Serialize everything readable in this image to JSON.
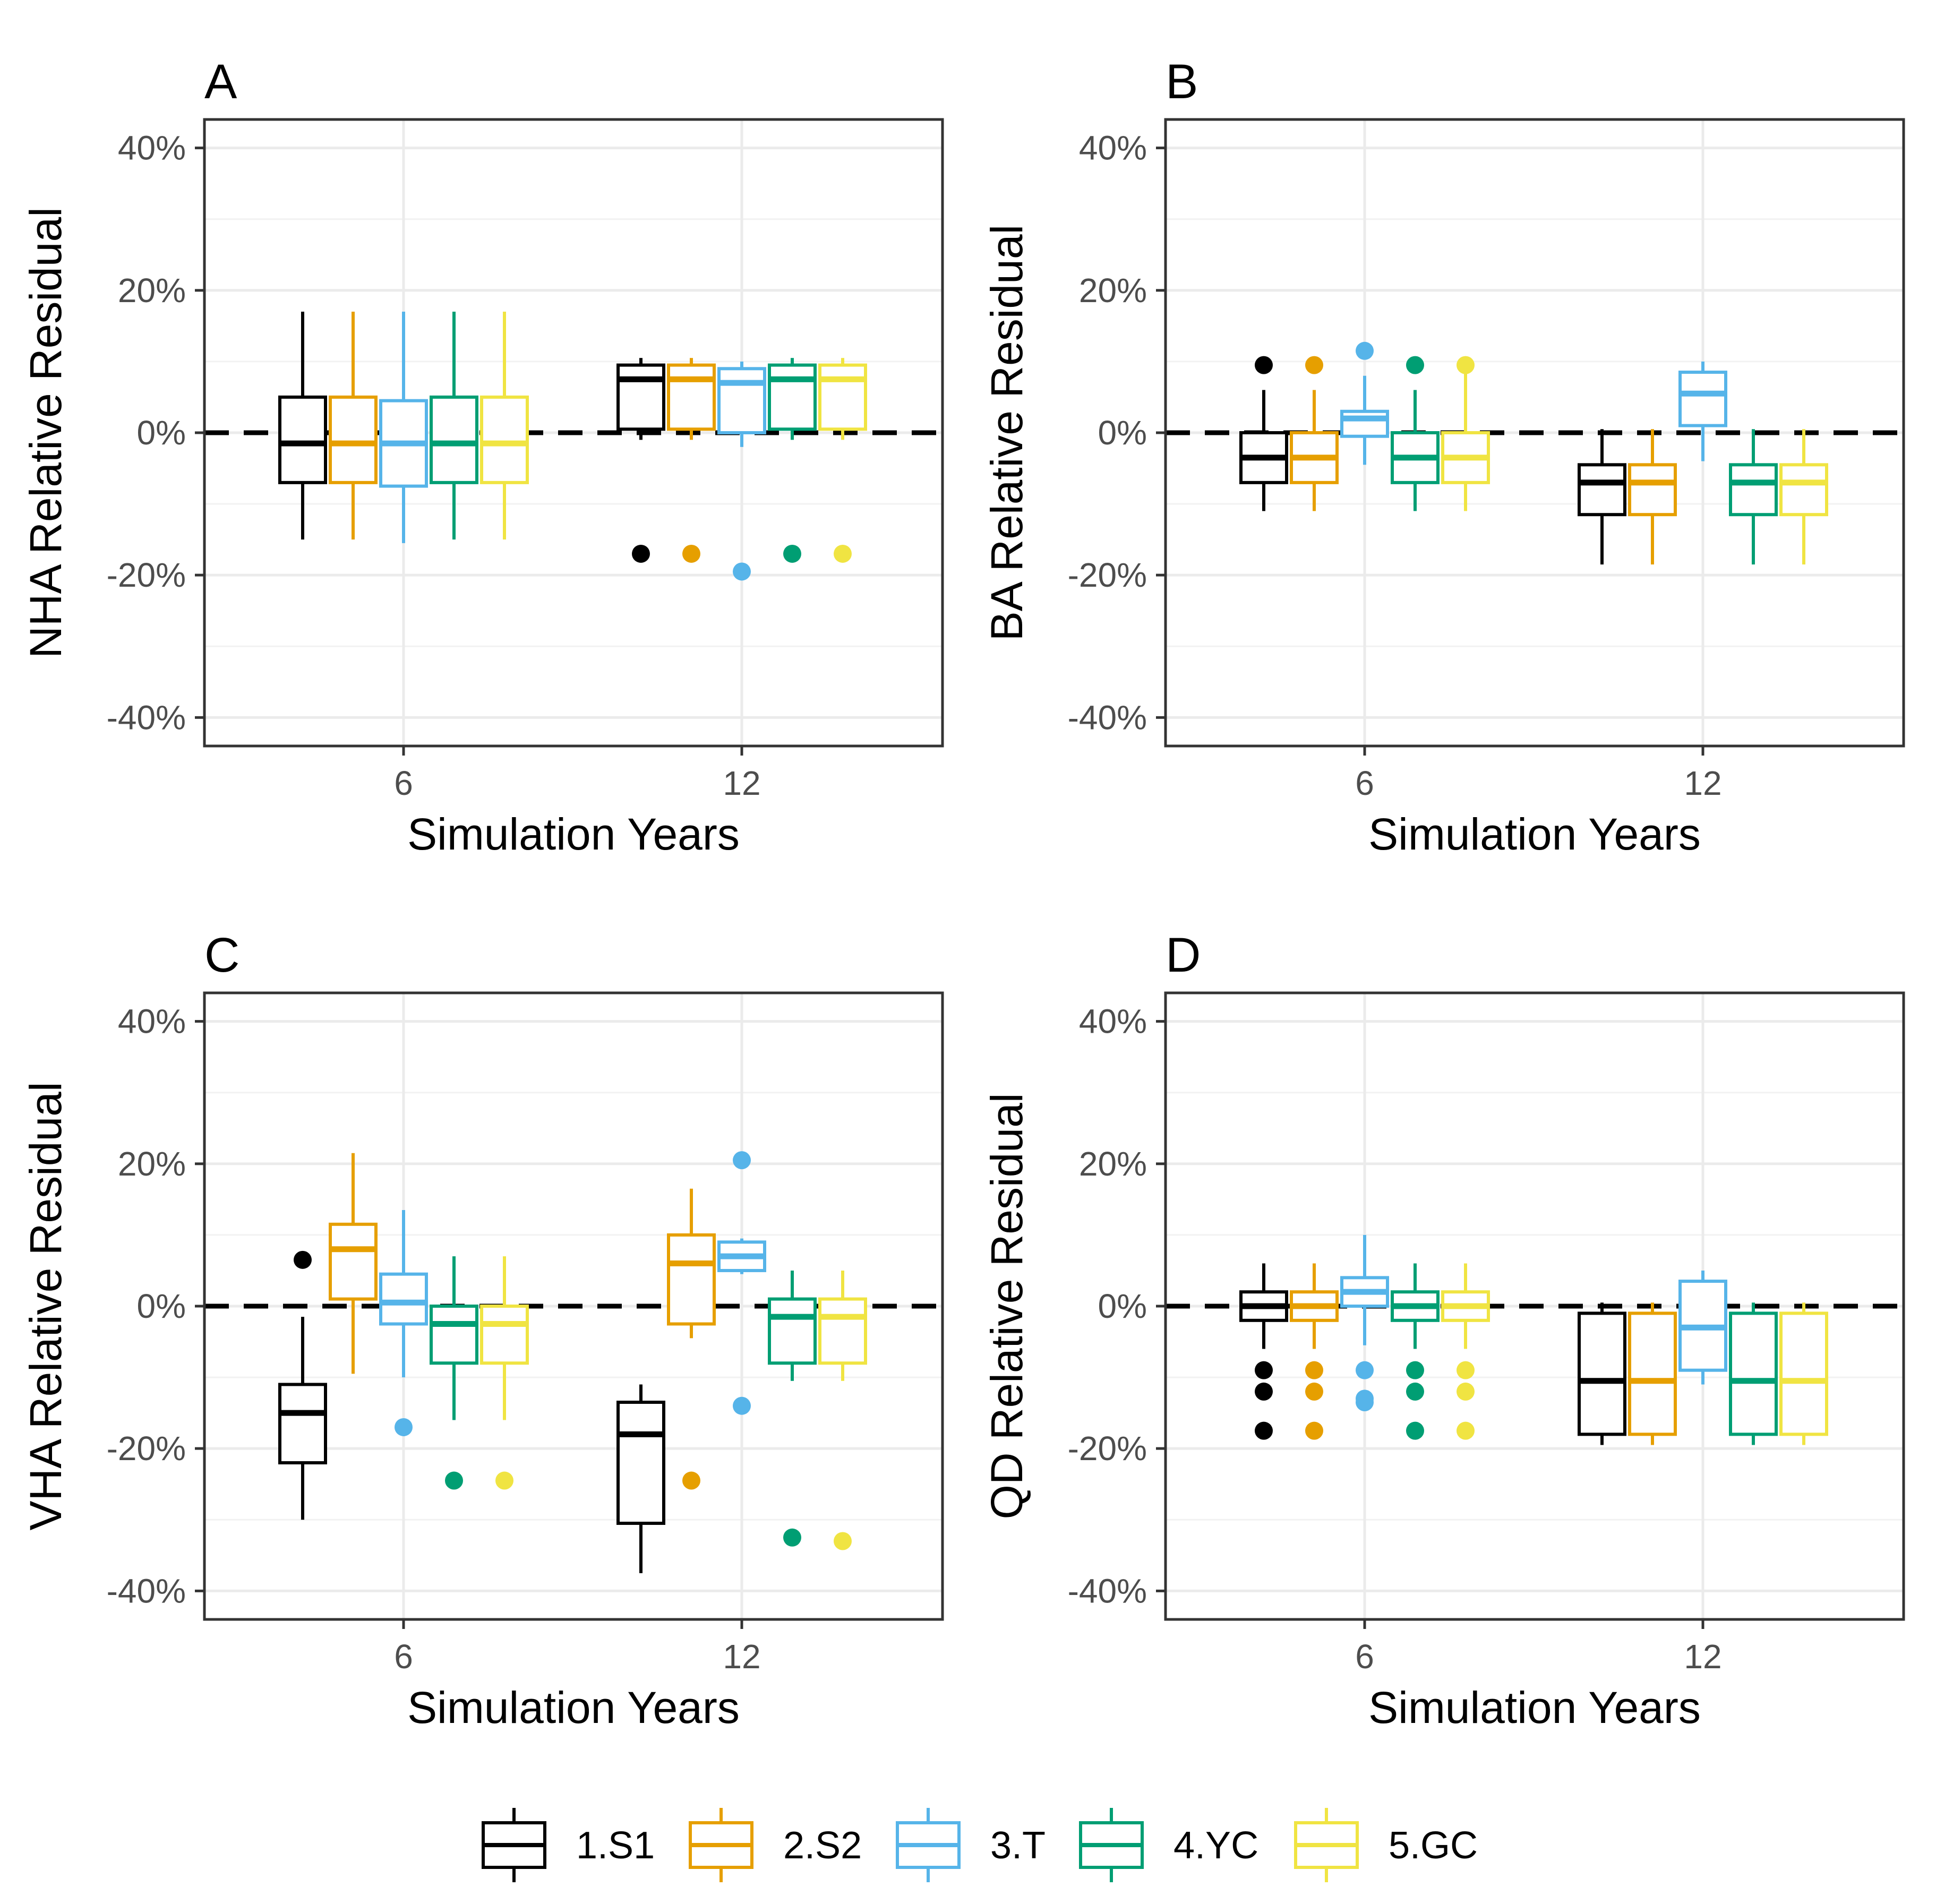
{
  "figure": {
    "x_axis_title": "Simulation Years",
    "y_tick_labels": [
      "-40%",
      "-20%",
      "0%",
      "20%",
      "40%"
    ],
    "x_tick_labels": [
      "6",
      "12"
    ]
  },
  "legend": [
    {
      "label": "1.S1",
      "color": "#000000"
    },
    {
      "label": "2.S2",
      "color": "#E69F00"
    },
    {
      "label": "3.T",
      "color": "#56B4E9"
    },
    {
      "label": "4.YC",
      "color": "#009E73"
    },
    {
      "label": "5.GC",
      "color": "#F0E442"
    }
  ],
  "chart_data": [
    {
      "type": "box",
      "panel": "A",
      "ylabel": "NHA Relative Residual",
      "xlabel": "Simulation Years",
      "ylim": [
        -0.44,
        0.44
      ],
      "y_ticks": [
        -0.4,
        -0.2,
        0,
        0.2,
        0.4
      ],
      "reference_line": 0,
      "groups": [
        {
          "x": "6",
          "boxes": [
            {
              "series": "1.S1",
              "min": -0.15,
              "q1": -0.07,
              "median": -0.015,
              "q3": 0.05,
              "max": 0.17,
              "outliers": []
            },
            {
              "series": "2.S2",
              "min": -0.15,
              "q1": -0.07,
              "median": -0.015,
              "q3": 0.05,
              "max": 0.17,
              "outliers": []
            },
            {
              "series": "3.T",
              "min": -0.155,
              "q1": -0.075,
              "median": -0.015,
              "q3": 0.045,
              "max": 0.17,
              "outliers": []
            },
            {
              "series": "4.YC",
              "min": -0.15,
              "q1": -0.07,
              "median": -0.015,
              "q3": 0.05,
              "max": 0.17,
              "outliers": []
            },
            {
              "series": "5.GC",
              "min": -0.15,
              "q1": -0.07,
              "median": -0.015,
              "q3": 0.05,
              "max": 0.17,
              "outliers": []
            }
          ]
        },
        {
          "x": "12",
          "boxes": [
            {
              "series": "1.S1",
              "min": -0.01,
              "q1": 0.005,
              "median": 0.075,
              "q3": 0.095,
              "max": 0.105,
              "outliers": [
                -0.17
              ]
            },
            {
              "series": "2.S2",
              "min": -0.01,
              "q1": 0.005,
              "median": 0.075,
              "q3": 0.095,
              "max": 0.105,
              "outliers": [
                -0.17
              ]
            },
            {
              "series": "3.T",
              "min": -0.02,
              "q1": 0.0,
              "median": 0.07,
              "q3": 0.09,
              "max": 0.1,
              "outliers": [
                -0.195
              ]
            },
            {
              "series": "4.YC",
              "min": -0.01,
              "q1": 0.005,
              "median": 0.075,
              "q3": 0.095,
              "max": 0.105,
              "outliers": [
                -0.17
              ]
            },
            {
              "series": "5.GC",
              "min": -0.01,
              "q1": 0.005,
              "median": 0.075,
              "q3": 0.095,
              "max": 0.105,
              "outliers": [
                -0.17
              ]
            }
          ]
        }
      ]
    },
    {
      "type": "box",
      "panel": "B",
      "ylabel": "BA Relative Residual",
      "xlabel": "Simulation Years",
      "ylim": [
        -0.44,
        0.44
      ],
      "y_ticks": [
        -0.4,
        -0.2,
        0,
        0.2,
        0.4
      ],
      "reference_line": 0,
      "groups": [
        {
          "x": "6",
          "boxes": [
            {
              "series": "1.S1",
              "min": -0.11,
              "q1": -0.07,
              "median": -0.035,
              "q3": 0.0,
              "max": 0.06,
              "outliers": [
                0.095
              ]
            },
            {
              "series": "2.S2",
              "min": -0.11,
              "q1": -0.07,
              "median": -0.035,
              "q3": 0.0,
              "max": 0.06,
              "outliers": [
                0.095
              ]
            },
            {
              "series": "3.T",
              "min": -0.045,
              "q1": -0.005,
              "median": 0.02,
              "q3": 0.03,
              "max": 0.08,
              "outliers": [
                0.115
              ]
            },
            {
              "series": "4.YC",
              "min": -0.11,
              "q1": -0.07,
              "median": -0.035,
              "q3": 0.0,
              "max": 0.06,
              "outliers": [
                0.095
              ]
            },
            {
              "series": "5.GC",
              "min": -0.11,
              "q1": -0.07,
              "median": -0.035,
              "q3": 0.0,
              "max": 0.095,
              "outliers": [
                0.095
              ]
            }
          ]
        },
        {
          "x": "12",
          "boxes": [
            {
              "series": "1.S1",
              "min": -0.185,
              "q1": -0.115,
              "median": -0.07,
              "q3": -0.045,
              "max": 0.005,
              "outliers": []
            },
            {
              "series": "2.S2",
              "min": -0.185,
              "q1": -0.115,
              "median": -0.07,
              "q3": -0.045,
              "max": 0.005,
              "outliers": []
            },
            {
              "series": "3.T",
              "min": -0.04,
              "q1": 0.01,
              "median": 0.055,
              "q3": 0.085,
              "max": 0.1,
              "outliers": []
            },
            {
              "series": "4.YC",
              "min": -0.185,
              "q1": -0.115,
              "median": -0.07,
              "q3": -0.045,
              "max": 0.005,
              "outliers": []
            },
            {
              "series": "5.GC",
              "min": -0.185,
              "q1": -0.115,
              "median": -0.07,
              "q3": -0.045,
              "max": 0.005,
              "outliers": []
            }
          ]
        }
      ]
    },
    {
      "type": "box",
      "panel": "C",
      "ylabel": "VHA Relative Residual",
      "xlabel": "Simulation Years",
      "ylim": [
        -0.44,
        0.44
      ],
      "y_ticks": [
        -0.4,
        -0.2,
        0,
        0.2,
        0.4
      ],
      "reference_line": 0,
      "groups": [
        {
          "x": "6",
          "boxes": [
            {
              "series": "1.S1",
              "min": -0.3,
              "q1": -0.22,
              "median": -0.15,
              "q3": -0.11,
              "max": -0.015,
              "outliers": [
                0.065
              ]
            },
            {
              "series": "2.S2",
              "min": -0.095,
              "q1": 0.01,
              "median": 0.08,
              "q3": 0.115,
              "max": 0.215,
              "outliers": []
            },
            {
              "series": "3.T",
              "min": -0.1,
              "q1": -0.025,
              "median": 0.005,
              "q3": 0.045,
              "max": 0.135,
              "outliers": [
                -0.17
              ]
            },
            {
              "series": "4.YC",
              "min": -0.16,
              "q1": -0.08,
              "median": -0.025,
              "q3": 0.0,
              "max": 0.07,
              "outliers": [
                -0.245
              ]
            },
            {
              "series": "5.GC",
              "min": -0.16,
              "q1": -0.08,
              "median": -0.025,
              "q3": 0.0,
              "max": 0.07,
              "outliers": [
                -0.245
              ]
            }
          ]
        },
        {
          "x": "12",
          "boxes": [
            {
              "series": "1.S1",
              "min": -0.375,
              "q1": -0.305,
              "median": -0.18,
              "q3": -0.135,
              "max": -0.11,
              "outliers": []
            },
            {
              "series": "2.S2",
              "min": -0.045,
              "q1": -0.025,
              "median": 0.06,
              "q3": 0.1,
              "max": 0.165,
              "outliers": [
                -0.245
              ]
            },
            {
              "series": "3.T",
              "min": 0.045,
              "q1": 0.05,
              "median": 0.07,
              "q3": 0.09,
              "max": 0.095,
              "outliers": [
                0.205,
                -0.14
              ]
            },
            {
              "series": "4.YC",
              "min": -0.105,
              "q1": -0.08,
              "median": -0.015,
              "q3": 0.01,
              "max": 0.05,
              "outliers": [
                -0.325
              ]
            },
            {
              "series": "5.GC",
              "min": -0.105,
              "q1": -0.08,
              "median": -0.015,
              "q3": 0.01,
              "max": 0.05,
              "outliers": [
                -0.33
              ]
            }
          ]
        }
      ]
    },
    {
      "type": "box",
      "panel": "D",
      "ylabel": "QD Relative Residual",
      "xlabel": "Simulation Years",
      "ylim": [
        -0.44,
        0.44
      ],
      "y_ticks": [
        -0.4,
        -0.2,
        0,
        0.2,
        0.4
      ],
      "reference_line": 0,
      "groups": [
        {
          "x": "6",
          "boxes": [
            {
              "series": "1.S1",
              "min": -0.06,
              "q1": -0.02,
              "median": 0.0,
              "q3": 0.02,
              "max": 0.06,
              "outliers": [
                -0.09,
                -0.12,
                -0.175
              ]
            },
            {
              "series": "2.S2",
              "min": -0.06,
              "q1": -0.02,
              "median": 0.0,
              "q3": 0.02,
              "max": 0.06,
              "outliers": [
                -0.09,
                -0.12,
                -0.175
              ]
            },
            {
              "series": "3.T",
              "min": -0.055,
              "q1": 0.0,
              "median": 0.02,
              "q3": 0.04,
              "max": 0.1,
              "outliers": [
                -0.09,
                -0.13,
                -0.135
              ]
            },
            {
              "series": "4.YC",
              "min": -0.06,
              "q1": -0.02,
              "median": 0.0,
              "q3": 0.02,
              "max": 0.06,
              "outliers": [
                -0.09,
                -0.12,
                -0.175
              ]
            },
            {
              "series": "5.GC",
              "min": -0.06,
              "q1": -0.02,
              "median": 0.0,
              "q3": 0.02,
              "max": 0.06,
              "outliers": [
                -0.09,
                -0.12,
                -0.175
              ]
            }
          ]
        },
        {
          "x": "12",
          "boxes": [
            {
              "series": "1.S1",
              "min": -0.195,
              "q1": -0.18,
              "median": -0.105,
              "q3": -0.01,
              "max": 0.005,
              "outliers": []
            },
            {
              "series": "2.S2",
              "min": -0.195,
              "q1": -0.18,
              "median": -0.105,
              "q3": -0.01,
              "max": 0.005,
              "outliers": []
            },
            {
              "series": "3.T",
              "min": -0.11,
              "q1": -0.09,
              "median": -0.03,
              "q3": 0.035,
              "max": 0.05,
              "outliers": []
            },
            {
              "series": "4.YC",
              "min": -0.195,
              "q1": -0.18,
              "median": -0.105,
              "q3": -0.01,
              "max": 0.005,
              "outliers": []
            },
            {
              "series": "5.GC",
              "min": -0.195,
              "q1": -0.18,
              "median": -0.105,
              "q3": -0.01,
              "max": 0.005,
              "outliers": []
            }
          ]
        }
      ]
    }
  ]
}
